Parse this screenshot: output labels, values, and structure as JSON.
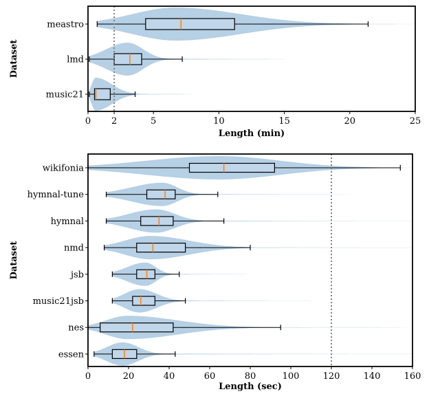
{
  "colors": {
    "violin_fill": "#a9c8e0",
    "box_fill": "#c6dbec",
    "median": "#ff7f0e",
    "frame": "#000000",
    "reference_line": "#808080"
  },
  "chart_data": [
    {
      "type": "violin",
      "orientation": "horizontal",
      "xlabel": "Length (min)",
      "ylabel": "Dataset",
      "xlim": [
        0,
        25
      ],
      "x_ticks": [
        0,
        2,
        5,
        10,
        15,
        20,
        25
      ],
      "x_tick_labels": [
        "0",
        "2",
        "5",
        "10",
        "15",
        "20",
        "25"
      ],
      "reference_line": 2,
      "grid": false,
      "categories": [
        "meastro",
        "lmd",
        "music21"
      ],
      "boxes": [
        {
          "label": "meastro",
          "whisker_low": 0.7,
          "q1": 4.4,
          "median": 7.1,
          "q3": 11.2,
          "whisker_high": 21.4,
          "max": 25
        },
        {
          "label": "lmd",
          "whisker_low": 0.1,
          "q1": 2.0,
          "median": 3.2,
          "q3": 4.1,
          "whisker_high": 7.2,
          "max": 15
        },
        {
          "label": "music21",
          "whisker_low": 0.1,
          "q1": 0.5,
          "median": 0.6,
          "q3": 1.7,
          "whisker_high": 3.6,
          "max": 8
        }
      ]
    },
    {
      "type": "violin",
      "orientation": "horizontal",
      "xlabel": "Length (sec)",
      "ylabel": "Dataset",
      "xlim": [
        0,
        160
      ],
      "x_ticks": [
        0,
        20,
        40,
        60,
        80,
        100,
        120,
        140,
        160
      ],
      "x_tick_labels": [
        "0",
        "20",
        "40",
        "60",
        "80",
        "100",
        "120",
        "140",
        "160"
      ],
      "reference_line": 120,
      "grid": false,
      "categories": [
        "wikifonia",
        "hymnal-tune",
        "hymnal",
        "nmd",
        "jsb",
        "music21jsb",
        "nes",
        "essen"
      ],
      "boxes": [
        {
          "label": "wikifonia",
          "whisker_low": 0,
          "q1": 50,
          "median": 67,
          "q3": 92,
          "whisker_high": 154,
          "max": 160
        },
        {
          "label": "hymnal-tune",
          "whisker_low": 9,
          "q1": 29,
          "median": 38,
          "q3": 43,
          "whisker_high": 64,
          "max": 130
        },
        {
          "label": "hymnal",
          "whisker_low": 9,
          "q1": 26,
          "median": 35,
          "q3": 42,
          "whisker_high": 67,
          "max": 160
        },
        {
          "label": "nmd",
          "whisker_low": 8,
          "q1": 24,
          "median": 32,
          "q3": 48,
          "whisker_high": 80,
          "max": 160
        },
        {
          "label": "jsb",
          "whisker_low": 12,
          "q1": 24,
          "median": 29,
          "q3": 33,
          "whisker_high": 45,
          "max": 80
        },
        {
          "label": "music21jsb",
          "whisker_low": 12,
          "q1": 22,
          "median": 26,
          "q3": 33,
          "whisker_high": 48,
          "max": 110
        },
        {
          "label": "nes",
          "whisker_low": 0,
          "q1": 6,
          "median": 22,
          "q3": 42,
          "whisker_high": 95,
          "max": 160
        },
        {
          "label": "essen",
          "whisker_low": 3,
          "q1": 12,
          "median": 18,
          "q3": 24,
          "whisker_high": 43,
          "max": 160
        }
      ]
    }
  ]
}
